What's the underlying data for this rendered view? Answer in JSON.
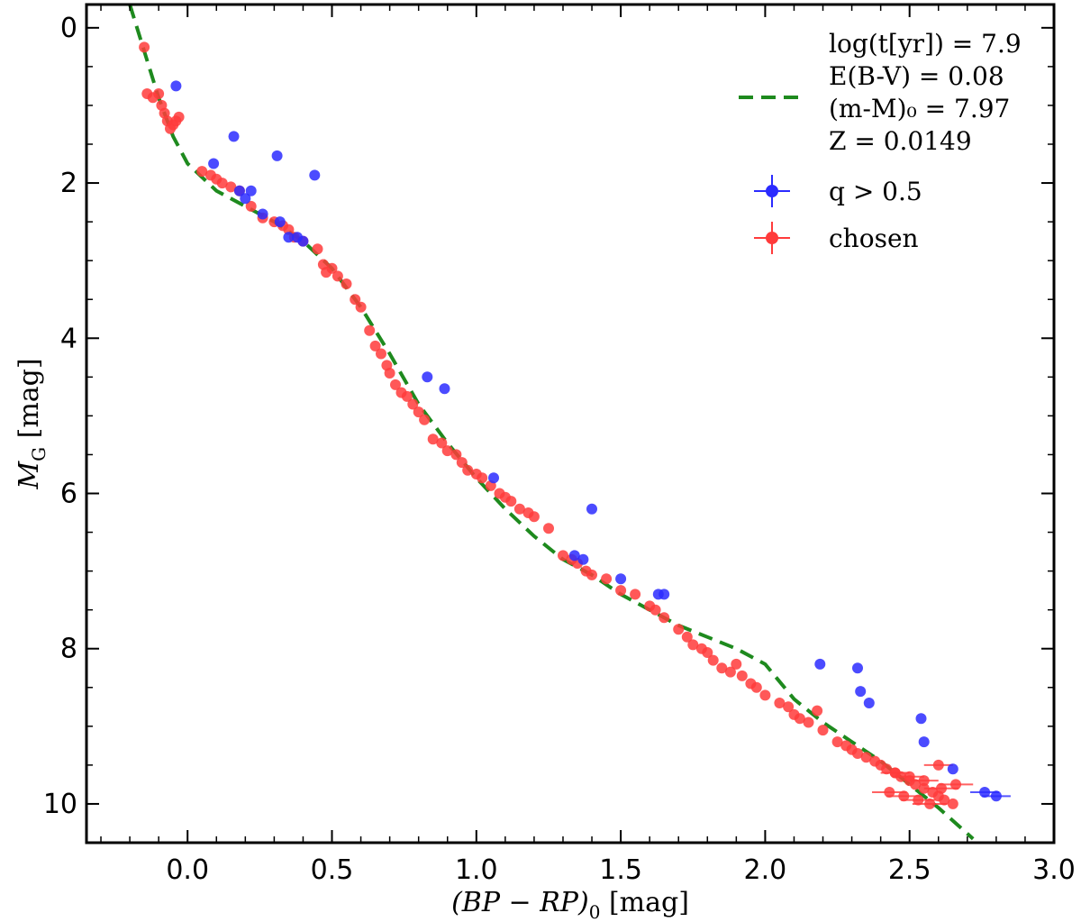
{
  "chart_data": {
    "type": "scatter",
    "xlabel": "(BP − RP)₀ [mag]",
    "xlabel_main": "(BP − RP)",
    "xlabel_sub": "0",
    "xlabel_unit": " [mag]",
    "ylabel": "M_G [mag]",
    "ylabel_main": "M",
    "ylabel_sub": "G",
    "ylabel_unit": " [mag]",
    "xlim": [
      -0.35,
      3.0
    ],
    "ylim": [
      10.5,
      -0.3
    ],
    "y_inverted": true,
    "xticks": [
      0.0,
      0.5,
      1.0,
      1.5,
      2.0,
      2.5,
      3.0
    ],
    "xtick_labels": [
      "0.0",
      "0.5",
      "1.0",
      "1.5",
      "2.0",
      "2.5",
      "3.0"
    ],
    "xminor_step": 0.1,
    "yticks": [
      0,
      2,
      4,
      6,
      8,
      10
    ],
    "ytick_labels": [
      "0",
      "2",
      "4",
      "6",
      "8",
      "10"
    ],
    "yminor_step": 0.5,
    "legend_position": "top-right",
    "legend": {
      "isochrone_lines": [
        "log(t[yr]) = 7.9",
        "E(B-V) = 0.08",
        "(m-M)₀ = 7.97",
        "Z = 0.0149"
      ],
      "q_label": "q > 0.5",
      "chosen_label": "chosen"
    },
    "colors": {
      "chosen": "#ff3b3b",
      "q": "#2b2bff",
      "isochrone": "#1e8a1e"
    },
    "isochrone": {
      "name": "isochrone",
      "x": [
        -0.2,
        -0.15,
        -0.1,
        -0.05,
        0.0,
        0.1,
        0.2,
        0.3,
        0.4,
        0.5,
        0.6,
        0.7,
        0.8,
        0.9,
        1.0,
        1.1,
        1.2,
        1.3,
        1.4,
        1.5,
        1.6,
        1.7,
        1.8,
        1.9,
        2.0,
        2.1,
        2.2,
        2.3,
        2.4,
        2.5,
        2.6,
        2.72
      ],
      "y": [
        -0.3,
        0.3,
        0.9,
        1.4,
        1.75,
        2.1,
        2.3,
        2.5,
        2.75,
        3.1,
        3.6,
        4.2,
        4.85,
        5.35,
        5.8,
        6.2,
        6.55,
        6.85,
        7.05,
        7.3,
        7.5,
        7.7,
        7.85,
        8.0,
        8.2,
        8.65,
        8.95,
        9.2,
        9.45,
        9.75,
        10.05,
        10.45
      ]
    },
    "series": [
      {
        "name": "chosen",
        "x": [
          -0.15,
          -0.14,
          -0.12,
          -0.1,
          -0.09,
          -0.08,
          -0.07,
          -0.06,
          -0.05,
          -0.04,
          -0.03,
          0.05,
          0.08,
          0.1,
          0.12,
          0.15,
          0.18,
          0.22,
          0.26,
          0.3,
          0.33,
          0.35,
          0.37,
          0.4,
          0.45,
          0.47,
          0.5,
          0.48,
          0.52,
          0.55,
          0.58,
          0.6,
          0.63,
          0.65,
          0.67,
          0.69,
          0.7,
          0.72,
          0.74,
          0.76,
          0.78,
          0.8,
          0.82,
          0.85,
          0.88,
          0.9,
          0.93,
          0.95,
          0.97,
          1.0,
          1.02,
          1.05,
          1.08,
          1.1,
          1.12,
          1.15,
          1.18,
          1.2,
          1.25,
          1.3,
          1.33,
          1.35,
          1.38,
          1.4,
          1.45,
          1.5,
          1.55,
          1.6,
          1.62,
          1.65,
          1.7,
          1.73,
          1.75,
          1.78,
          1.8,
          1.82,
          1.85,
          1.88,
          1.9,
          1.92,
          1.95,
          1.97,
          2.0,
          2.05,
          2.08,
          2.1,
          2.12,
          2.15,
          2.18,
          2.2,
          2.25,
          2.28,
          2.3,
          2.32,
          2.35,
          2.38,
          2.4,
          2.42,
          2.45,
          2.47,
          2.5,
          2.52,
          2.55,
          2.58,
          2.6,
          2.62,
          2.65,
          2.43,
          2.48,
          2.53,
          2.57,
          2.61,
          2.66,
          2.45,
          2.5,
          2.55,
          2.6
        ],
        "y": [
          0.25,
          0.85,
          0.9,
          0.85,
          1.0,
          1.1,
          1.2,
          1.3,
          1.25,
          1.2,
          1.15,
          1.85,
          1.9,
          1.95,
          2.0,
          2.05,
          2.1,
          2.3,
          2.45,
          2.5,
          2.55,
          2.6,
          2.7,
          2.75,
          2.85,
          3.05,
          3.1,
          3.15,
          3.2,
          3.3,
          3.5,
          3.6,
          3.9,
          4.1,
          4.2,
          4.35,
          4.45,
          4.6,
          4.7,
          4.75,
          4.85,
          4.95,
          5.05,
          5.3,
          5.35,
          5.45,
          5.5,
          5.6,
          5.7,
          5.75,
          5.8,
          5.9,
          6.0,
          6.05,
          6.1,
          6.2,
          6.25,
          6.3,
          6.45,
          6.8,
          6.85,
          6.9,
          7.0,
          7.05,
          7.1,
          7.25,
          7.3,
          7.45,
          7.5,
          7.6,
          7.75,
          7.85,
          7.95,
          8.0,
          8.05,
          8.15,
          8.25,
          8.3,
          8.2,
          8.35,
          8.45,
          8.5,
          8.6,
          8.7,
          8.75,
          8.85,
          8.9,
          8.95,
          8.8,
          9.05,
          9.2,
          9.25,
          9.3,
          9.35,
          9.4,
          9.45,
          9.5,
          9.55,
          9.6,
          9.65,
          9.7,
          9.75,
          9.8,
          9.85,
          9.9,
          9.95,
          10.0,
          9.85,
          9.9,
          9.95,
          10.0,
          9.8,
          9.75,
          9.6,
          9.65,
          9.7,
          9.5
        ],
        "xerr": [
          0,
          0,
          0,
          0,
          0,
          0,
          0,
          0,
          0,
          0,
          0,
          0,
          0,
          0,
          0,
          0,
          0,
          0,
          0,
          0,
          0,
          0,
          0,
          0,
          0,
          0,
          0,
          0,
          0,
          0,
          0,
          0,
          0,
          0,
          0,
          0,
          0,
          0,
          0,
          0,
          0,
          0,
          0,
          0,
          0,
          0,
          0,
          0,
          0,
          0,
          0,
          0,
          0,
          0,
          0,
          0,
          0,
          0,
          0,
          0,
          0,
          0,
          0,
          0,
          0,
          0,
          0,
          0,
          0,
          0,
          0,
          0,
          0,
          0,
          0,
          0,
          0,
          0,
          0,
          0,
          0,
          0,
          0,
          0,
          0,
          0,
          0,
          0,
          0,
          0,
          0,
          0,
          0,
          0,
          0,
          0,
          0,
          0,
          0,
          0,
          0,
          0,
          0,
          0,
          0,
          0,
          0,
          0.06,
          0.06,
          0.06,
          0.06,
          0.06,
          0.06,
          0.05,
          0.05,
          0.05,
          0.05
        ]
      },
      {
        "name": "q > 0.5",
        "x": [
          -0.04,
          0.09,
          0.16,
          0.18,
          0.2,
          0.22,
          0.26,
          0.31,
          0.32,
          0.35,
          0.38,
          0.4,
          0.44,
          0.83,
          0.89,
          1.06,
          1.34,
          1.37,
          1.4,
          1.5,
          1.63,
          1.65,
          2.19,
          2.32,
          2.33,
          2.36,
          2.54,
          2.55,
          2.65,
          2.76,
          2.8
        ],
        "y": [
          0.75,
          1.75,
          1.4,
          2.1,
          2.2,
          2.1,
          2.4,
          1.65,
          2.5,
          2.7,
          2.7,
          2.75,
          1.9,
          4.5,
          4.65,
          5.8,
          6.8,
          6.85,
          6.2,
          7.1,
          7.3,
          7.3,
          8.2,
          8.25,
          8.55,
          8.7,
          8.9,
          9.2,
          9.55,
          9.85,
          9.9
        ],
        "xerr": [
          0,
          0,
          0,
          0,
          0,
          0,
          0,
          0,
          0,
          0,
          0,
          0,
          0,
          0,
          0,
          0,
          0,
          0,
          0,
          0,
          0,
          0,
          0,
          0,
          0,
          0,
          0,
          0,
          0,
          0.05,
          0.05
        ]
      }
    ]
  }
}
